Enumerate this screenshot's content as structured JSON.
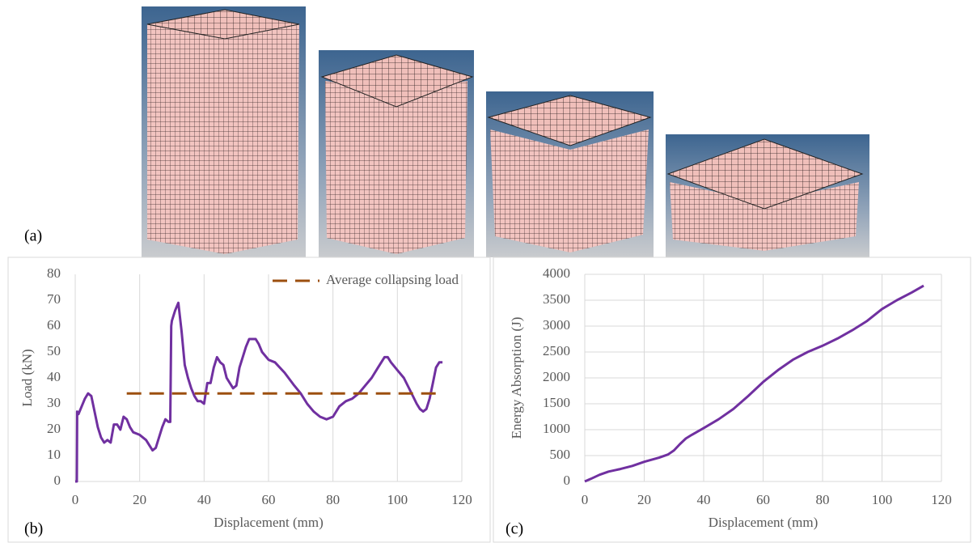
{
  "panel_labels": [
    "(a)",
    "(b)",
    "(c)"
  ],
  "chart_data": [
    {
      "type": "line",
      "x_label": "Displacement (mm)",
      "y_label": "Load (kN)",
      "xlim": [
        0,
        120
      ],
      "xticks": [
        0,
        20,
        40,
        60,
        80,
        100,
        120
      ],
      "ylim": [
        0,
        80
      ],
      "yticks": [
        0,
        10,
        20,
        30,
        40,
        50,
        60,
        70,
        80
      ],
      "grid": "x",
      "legend": "top-right",
      "series": [
        {
          "color": "#7030a0",
          "x": [
            0,
            0.5,
            0.6,
            1,
            2,
            3,
            4,
            5,
            6,
            7,
            8,
            9,
            10,
            11,
            12,
            13,
            14,
            15,
            16,
            17,
            18,
            20,
            22,
            23,
            24,
            25,
            26,
            27,
            28,
            29,
            29.5,
            29.8,
            30,
            30.5,
            31,
            32,
            33,
            34,
            35,
            36,
            37,
            38,
            39,
            40,
            41,
            42,
            43,
            44,
            45,
            46,
            47,
            48,
            49,
            50,
            51,
            52,
            53,
            54,
            55,
            56,
            57,
            58,
            60,
            62,
            65,
            68,
            70,
            72,
            74,
            76,
            78,
            80,
            82,
            84,
            86,
            88,
            90,
            92,
            94,
            96,
            97,
            98,
            100,
            102,
            104,
            106,
            107,
            108,
            109,
            110,
            111,
            112,
            113,
            114
          ],
          "values": [
            0,
            0,
            27,
            26,
            29,
            32,
            34,
            33,
            27,
            21,
            17,
            15,
            16,
            15,
            22,
            22,
            20,
            25,
            24,
            21,
            19,
            18,
            16,
            14,
            12,
            13,
            17,
            21,
            24,
            23,
            23,
            60,
            62,
            64,
            66,
            69,
            58,
            45,
            40,
            36,
            33,
            31,
            31,
            30,
            38,
            38,
            44,
            48,
            46,
            45,
            40,
            38,
            36,
            37,
            44,
            48,
            52,
            55,
            55,
            55,
            53,
            50,
            47,
            46,
            42,
            37,
            34,
            30,
            27,
            25,
            24,
            25,
            29,
            31,
            32,
            34,
            37,
            40,
            44,
            48,
            48,
            46,
            43,
            40,
            35,
            30,
            28,
            27,
            28,
            32,
            38,
            44,
            46,
            46
          ]
        },
        {
          "name": "Average collapsing load",
          "color": "#9c4f0f",
          "line_style": "dashed",
          "x": [
            16,
            114
          ],
          "values": [
            34,
            34
          ]
        }
      ]
    },
    {
      "type": "line",
      "x_label": "Displacement (mm)",
      "y_label": "Energy Absorption (J)",
      "xlim": [
        0,
        120
      ],
      "xticks": [
        0,
        20,
        40,
        60,
        80,
        100,
        120
      ],
      "ylim": [
        0,
        4000
      ],
      "yticks": [
        0,
        500,
        1000,
        1500,
        2000,
        2500,
        3000,
        3500,
        4000
      ],
      "grid": "both",
      "series": [
        {
          "color": "#7030a0",
          "x": [
            0,
            2,
            5,
            8,
            12,
            16,
            20,
            25,
            28,
            30,
            32,
            34,
            36,
            40,
            45,
            50,
            55,
            60,
            65,
            70,
            75,
            80,
            85,
            90,
            95,
            100,
            105,
            110,
            114
          ],
          "values": [
            0,
            50,
            130,
            190,
            240,
            300,
            380,
            460,
            520,
            600,
            720,
            830,
            900,
            1030,
            1200,
            1400,
            1650,
            1920,
            2150,
            2350,
            2500,
            2620,
            2760,
            2920,
            3100,
            3330,
            3500,
            3650,
            3780
          ]
        }
      ]
    }
  ]
}
